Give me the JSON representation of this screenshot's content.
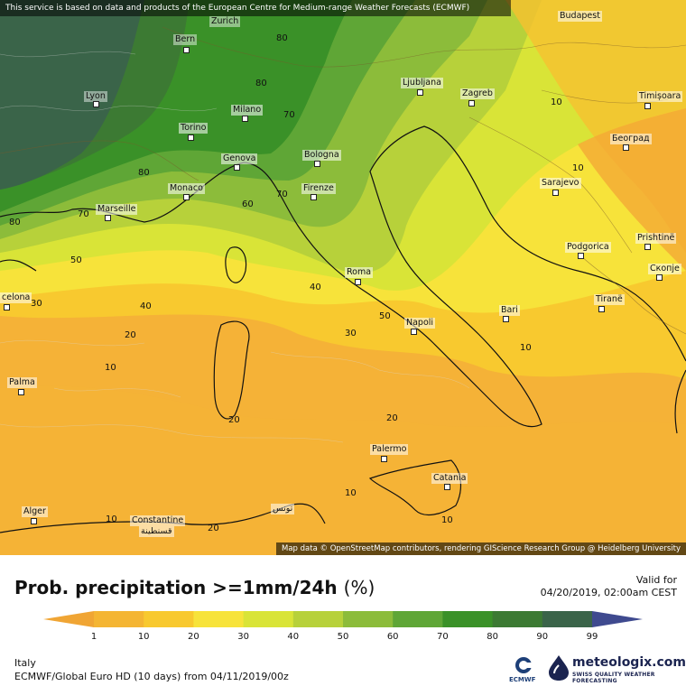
{
  "banner": "This service is based on data and products of the European Centre for Medium-range Weather Forecasts (ECMWF)",
  "attribution": "Map data © OpenStreetMap contributors, rendering GIScience Research Group @ Heidelberg University",
  "cities": {
    "budapest": "Budapest",
    "zurich": "Zurich",
    "bern": "Bern",
    "lyon": "Lyon",
    "milano": "Milano",
    "ljubljana": "Ljubljana",
    "zagreb": "Zagreb",
    "timisoara": "Timișoara",
    "torino": "Torino",
    "genova": "Genova",
    "bologna": "Bologna",
    "beograd": "Београд",
    "sarajevo": "Sarajevo",
    "monaco": "Monaco",
    "firenze": "Firenze",
    "marseille": "Marseille",
    "podgorica": "Podgorica",
    "pristine": "Prishtinë",
    "skopje": "Скопје",
    "roma": "Roma",
    "tirane": "Tiranë",
    "barcelona": "celona",
    "bari": "Bari",
    "napoli": "Napoli",
    "palma": "Palma",
    "palermo": "Palermo",
    "catania": "Catania",
    "alger": "Alger",
    "constantine": "Constantine",
    "constantine_ar": "قسنطينة",
    "tunis_ar": "تونس"
  },
  "contour_labels": [
    "80",
    "70",
    "80",
    "70",
    "80",
    "80",
    "70",
    "60",
    "50",
    "30",
    "40",
    "40",
    "20",
    "10",
    "20",
    "20",
    "10",
    "10",
    "10",
    "10",
    "10",
    "50",
    "30",
    "10",
    "20"
  ],
  "legend": {
    "title": "Prob. precipitation >=1mm/24h",
    "unit": "(%)",
    "valid_label": "Valid for",
    "valid_value": "04/20/2019, 02:00am CEST",
    "ticks": [
      "1",
      "10",
      "20",
      "30",
      "40",
      "50",
      "60",
      "70",
      "80",
      "90",
      "99"
    ],
    "colors": [
      "#f0a534",
      "#f4b533",
      "#f8c92f",
      "#f7e33a",
      "#d9e437",
      "#b7d13a",
      "#8cbc3a",
      "#5fa636",
      "#3a9128",
      "#3c7a33",
      "#3a6449",
      "#3f4a8f"
    ],
    "region": "Italy",
    "model": "ECMWF/Global Euro HD (10 days) from 04/11/2019/00z"
  },
  "logos": {
    "ecmwf": "ECMWF",
    "meteologix_name": "meteologix.com",
    "meteologix_tag": "SWISS QUALITY WEATHER FORECASTING"
  }
}
